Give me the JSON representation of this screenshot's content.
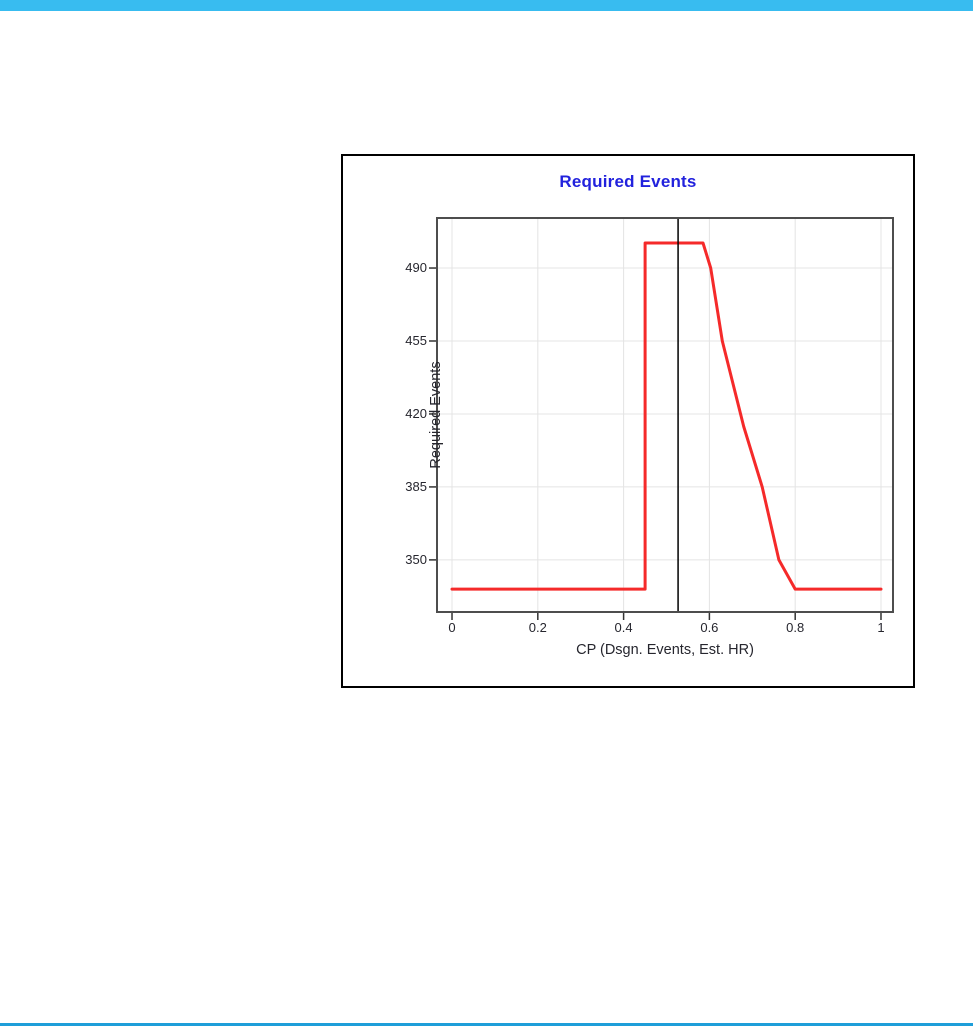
{
  "page": {
    "top_bar_color": "#38bcf0",
    "bottom_line_color": "#1e9ed9",
    "background": "#ffffff"
  },
  "panel": {
    "border_color": "#000000",
    "background": "#ffffff"
  },
  "chart_data": {
    "type": "line",
    "title": "Required Events",
    "title_color": "#2222dd",
    "xlabel": "CP (Dsgn. Events, Est. HR)",
    "ylabel": "Required Events",
    "x_ticks": [
      0,
      0.2,
      0.4,
      0.6,
      0.8,
      1
    ],
    "x_tick_labels": [
      "0",
      "0.2",
      "0.4",
      "0.6",
      "0.8",
      "1"
    ],
    "y_ticks": [
      350,
      385,
      420,
      455,
      490
    ],
    "y_tick_labels": [
      "350",
      "385",
      "420",
      "455",
      "490"
    ],
    "xlim": [
      -0.035,
      1.028
    ],
    "ylim": [
      325,
      514
    ],
    "grid": true,
    "gridline_color": "#e4e4e4",
    "plot_border_color": "#4d4d4d",
    "tick_color": "#333333",
    "series": [
      {
        "name": "Required Events",
        "color": "#f52a2a",
        "points": [
          [
            0.0,
            336
          ],
          [
            0.45,
            336
          ],
          [
            0.45,
            502
          ],
          [
            0.585,
            502
          ],
          [
            0.603,
            490
          ],
          [
            0.63,
            455
          ],
          [
            0.68,
            414
          ],
          [
            0.723,
            385
          ],
          [
            0.762,
            350
          ],
          [
            0.8,
            336
          ],
          [
            1.0,
            336
          ]
        ]
      }
    ],
    "reference_line": {
      "x": 0.527,
      "color": "#000000"
    }
  }
}
